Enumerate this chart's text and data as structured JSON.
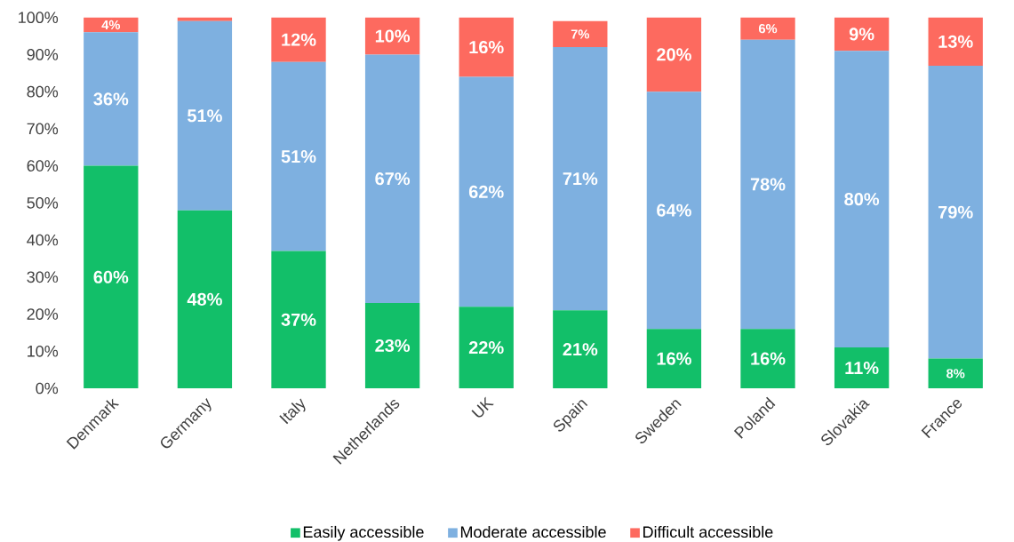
{
  "chart_data": {
    "type": "bar",
    "stacked": true,
    "categories": [
      "Denmark",
      "Germany",
      "Italy",
      "Netherlands",
      "UK",
      "Spain",
      "Sweden",
      "Poland",
      "Slovakia",
      "France"
    ],
    "series": [
      {
        "name": "Easily accessible",
        "color": "#12bf69",
        "values": [
          60,
          48,
          37,
          23,
          22,
          21,
          16,
          16,
          11,
          8
        ],
        "value_labels": [
          "60%",
          "48%",
          "37%",
          "23%",
          "22%",
          "21%",
          "16%",
          "16%",
          "11%",
          "8%"
        ]
      },
      {
        "name": "Moderate accessible",
        "color": "#7eb0e0",
        "values": [
          36,
          51,
          51,
          67,
          62,
          71,
          64,
          78,
          80,
          79
        ],
        "value_labels": [
          "36%",
          "51%",
          "51%",
          "67%",
          "62%",
          "71%",
          "64%",
          "78%",
          "80%",
          "79%"
        ]
      },
      {
        "name": "Difficult accessible",
        "color": "#fd6a5f",
        "values": [
          4,
          1,
          12,
          10,
          16,
          7,
          20,
          6,
          9,
          13
        ],
        "value_labels": [
          "4%",
          null,
          "12%",
          "10%",
          "16%",
          "7%",
          "20%",
          "6%",
          "9%",
          "13%"
        ]
      }
    ],
    "ylim": [
      0,
      100
    ],
    "yticks": [
      {
        "value": 0,
        "label": "0%"
      },
      {
        "value": 10,
        "label": "10%"
      },
      {
        "value": 20,
        "label": "20%"
      },
      {
        "value": 30,
        "label": "30%"
      },
      {
        "value": 40,
        "label": "40%"
      },
      {
        "value": 50,
        "label": "50%"
      },
      {
        "value": 60,
        "label": "60%"
      },
      {
        "value": 70,
        "label": "70%"
      },
      {
        "value": 80,
        "label": "80%"
      },
      {
        "value": 90,
        "label": "90%"
      },
      {
        "value": 100,
        "label": "100%"
      }
    ],
    "grid": false,
    "legend": "bottom"
  }
}
